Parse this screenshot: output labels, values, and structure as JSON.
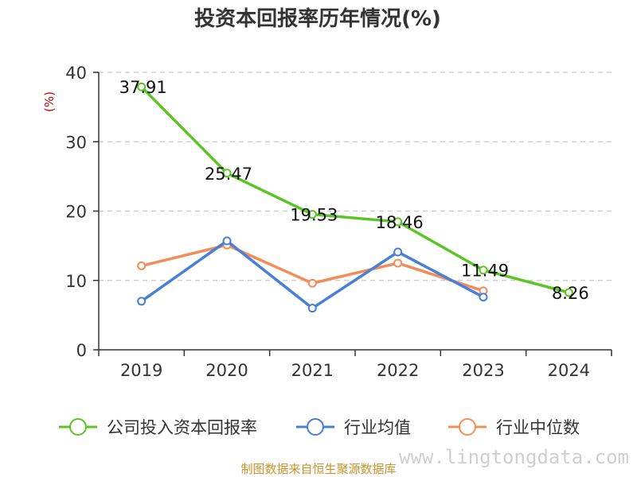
{
  "chart_data": {
    "type": "line",
    "title": "投资本回报率历年情况(%)",
    "ylabel": "(%)",
    "xlabel": "",
    "categories": [
      "2019",
      "2020",
      "2021",
      "2022",
      "2023",
      "2024"
    ],
    "ylim": [
      0,
      40
    ],
    "yticks": [
      0,
      10,
      20,
      30,
      40
    ],
    "grid": true,
    "legend_position": "bottom",
    "series": [
      {
        "name": "公司投入资本回报率",
        "color": "#5cc424",
        "values": [
          37.91,
          25.47,
          19.53,
          18.46,
          11.49,
          8.26
        ],
        "labels": [
          "37.91",
          "25.47",
          "19.53",
          "18.46",
          "11.49",
          "8.26"
        ]
      },
      {
        "name": "行业均值",
        "color": "#4a7fd6",
        "values": [
          7.0,
          15.7,
          6.0,
          14.1,
          7.6,
          null
        ]
      },
      {
        "name": "行业中位数",
        "color": "#f48c5a",
        "values": [
          12.1,
          15.1,
          9.6,
          12.5,
          8.5,
          null
        ]
      }
    ]
  },
  "watermark": "www.lingtongdata.com",
  "source": "制图数据来自恒生聚源数据库"
}
